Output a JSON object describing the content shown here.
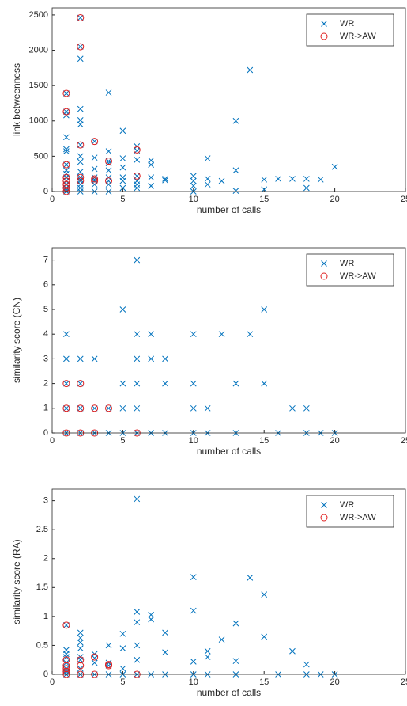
{
  "chart_data": [
    {
      "type": "scatter",
      "xlabel": "number of calls",
      "ylabel": "link betweenness",
      "xlim": [
        0,
        25
      ],
      "xticks": [
        0,
        5,
        10,
        15,
        20,
        25
      ],
      "ylim": [
        0,
        2600
      ],
      "yticks": [
        0,
        500,
        1000,
        1500,
        2000,
        2500
      ],
      "legend": "northeast",
      "series": [
        {
          "name": "WR",
          "color": "#0072bd",
          "marker": "x",
          "x": [
            1,
            1,
            1,
            1,
            1,
            1,
            1,
            1,
            1,
            1,
            1,
            1,
            1,
            1,
            1,
            2,
            2,
            2,
            2,
            2,
            2,
            2,
            2,
            2,
            2,
            2,
            2,
            2,
            2,
            2,
            2,
            3,
            3,
            3,
            3,
            3,
            3,
            3,
            3,
            4,
            4,
            4,
            4,
            4,
            4,
            4,
            4,
            4,
            5,
            5,
            5,
            5,
            5,
            5,
            6,
            6,
            6,
            6,
            6,
            6,
            6,
            7,
            7,
            7,
            7,
            8,
            8,
            10,
            10,
            10,
            10,
            11,
            11,
            11,
            12,
            13,
            13,
            13,
            14,
            15,
            15,
            16,
            17,
            18,
            18,
            19,
            20
          ],
          "values": [
            1080,
            1130,
            1390,
            770,
            600,
            570,
            380,
            300,
            250,
            200,
            150,
            100,
            50,
            20,
            0,
            2460,
            2050,
            1880,
            1170,
            1010,
            950,
            660,
            500,
            420,
            280,
            200,
            170,
            150,
            100,
            50,
            0,
            710,
            480,
            320,
            200,
            170,
            150,
            100,
            0,
            1400,
            570,
            430,
            400,
            300,
            200,
            150,
            100,
            0,
            860,
            470,
            340,
            200,
            150,
            50,
            640,
            580,
            450,
            220,
            150,
            100,
            50,
            440,
            380,
            200,
            80,
            180,
            160,
            220,
            150,
            80,
            0,
            470,
            180,
            100,
            150,
            1000,
            300,
            10,
            1720,
            170,
            30,
            180,
            180,
            180,
            50,
            170,
            350
          ]
        },
        {
          "name": "WR->AW",
          "color": "#e02020",
          "marker": "o",
          "x": [
            1,
            1,
            1,
            1,
            1,
            1,
            1,
            1,
            2,
            2,
            2,
            2,
            2,
            3,
            3,
            3,
            4,
            4,
            6,
            6
          ],
          "values": [
            1390,
            1130,
            380,
            200,
            150,
            100,
            50,
            0,
            2460,
            2050,
            660,
            200,
            150,
            710,
            180,
            150,
            430,
            150,
            590,
            220
          ]
        }
      ]
    },
    {
      "type": "scatter",
      "xlabel": "number of calls",
      "ylabel": "similarity score (CN)",
      "xlim": [
        0,
        25
      ],
      "xticks": [
        0,
        5,
        10,
        15,
        20,
        25
      ],
      "ylim": [
        0,
        7.5
      ],
      "yticks": [
        0,
        1,
        2,
        3,
        4,
        5,
        6,
        7
      ],
      "legend": "northeast",
      "series": [
        {
          "name": "WR",
          "color": "#0072bd",
          "marker": "x",
          "x": [
            1,
            1,
            1,
            1,
            1,
            2,
            2,
            2,
            2,
            3,
            3,
            3,
            4,
            4,
            5,
            5,
            5,
            5,
            6,
            6,
            6,
            6,
            6,
            6,
            7,
            7,
            7,
            8,
            8,
            8,
            10,
            10,
            10,
            10,
            11,
            11,
            12,
            13,
            13,
            14,
            15,
            15,
            16,
            17,
            18,
            18,
            19,
            20
          ],
          "values": [
            4,
            3,
            2,
            1,
            0,
            3,
            2,
            1,
            0,
            3,
            1,
            0,
            1,
            0,
            5,
            2,
            1,
            0,
            7,
            4,
            3,
            2,
            1,
            0,
            4,
            3,
            0,
            3,
            2,
            0,
            4,
            2,
            1,
            0,
            1,
            0,
            4,
            2,
            0,
            4,
            5,
            2,
            0,
            1,
            1,
            0,
            0,
            0
          ]
        },
        {
          "name": "WR->AW",
          "color": "#e02020",
          "marker": "o",
          "x": [
            1,
            1,
            1,
            2,
            2,
            2,
            3,
            3,
            4,
            6
          ],
          "values": [
            2,
            1,
            0,
            2,
            1,
            0,
            1,
            0,
            1,
            0
          ]
        }
      ]
    },
    {
      "type": "scatter",
      "xlabel": "number of calls",
      "ylabel": "similarity score (RA)",
      "xlim": [
        0,
        25
      ],
      "xticks": [
        0,
        5,
        10,
        15,
        20,
        25
      ],
      "ylim": [
        0,
        3.2
      ],
      "yticks": [
        0,
        0.5,
        1,
        1.5,
        2,
        2.5,
        3
      ],
      "legend": "northeast",
      "series": [
        {
          "name": "WR",
          "color": "#0072bd",
          "marker": "x",
          "x": [
            1,
            1,
            1,
            1,
            1,
            1,
            1,
            1,
            2,
            2,
            2,
            2,
            2,
            2,
            2,
            2,
            3,
            3,
            3,
            3,
            4,
            4,
            4,
            4,
            5,
            5,
            5,
            5,
            6,
            6,
            6,
            6,
            6,
            6,
            7,
            7,
            7,
            8,
            8,
            8,
            10,
            10,
            10,
            10,
            11,
            11,
            11,
            12,
            13,
            13,
            13,
            14,
            15,
            15,
            16,
            17,
            18,
            18,
            19,
            20
          ],
          "values": [
            0.85,
            0.42,
            0.35,
            0.3,
            0.2,
            0.1,
            0.05,
            0,
            0.72,
            0.63,
            0.55,
            0.45,
            0.3,
            0.25,
            0.1,
            0,
            0.35,
            0.28,
            0.2,
            0,
            0.5,
            0.2,
            0.15,
            0,
            0.7,
            0.45,
            0.1,
            0,
            3.03,
            1.08,
            0.9,
            0.5,
            0.25,
            0,
            1.03,
            0.95,
            0,
            0.72,
            0.38,
            0,
            1.68,
            1.1,
            0.22,
            0,
            0.4,
            0.3,
            0,
            0.6,
            0.88,
            0.23,
            0,
            1.67,
            1.38,
            0.65,
            0,
            0.4,
            0.17,
            0,
            0,
            0
          ]
        },
        {
          "name": "WR->AW",
          "color": "#e02020",
          "marker": "o",
          "x": [
            1,
            1,
            1,
            1,
            1,
            1,
            2,
            2,
            2,
            3,
            3,
            4,
            4,
            6
          ],
          "values": [
            0.85,
            0.25,
            0.15,
            0.1,
            0.05,
            0,
            0.25,
            0.15,
            0,
            0.3,
            0,
            0.17,
            0.15,
            0
          ]
        }
      ]
    }
  ]
}
